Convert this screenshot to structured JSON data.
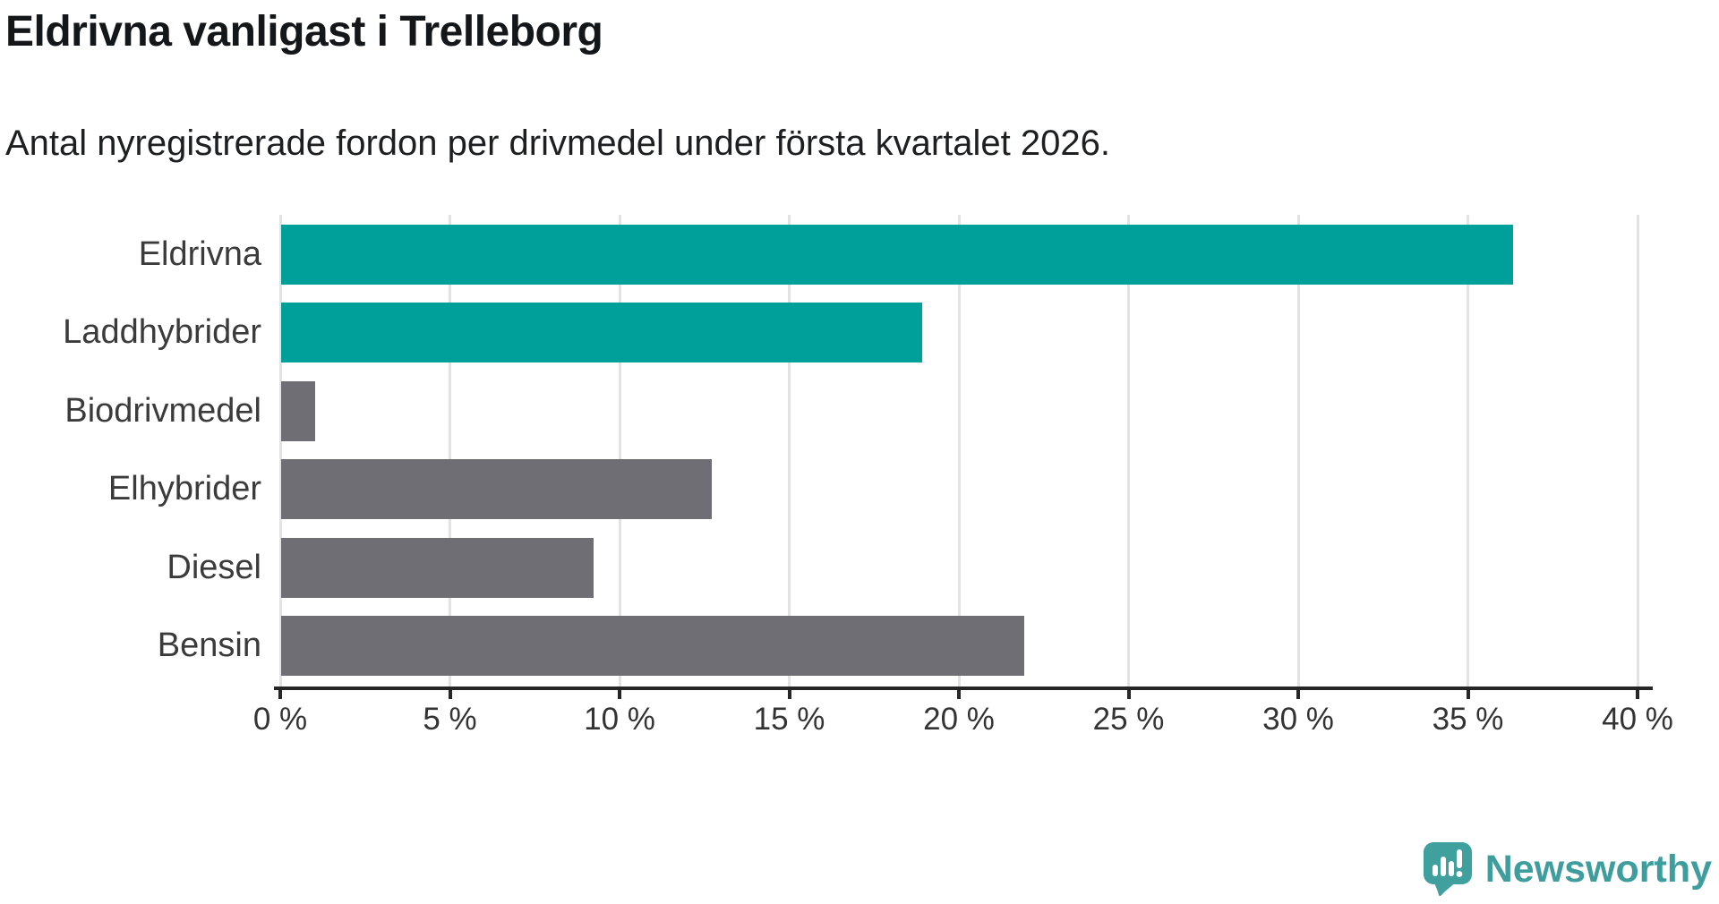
{
  "title": "Eldrivna vanligast i Trelleborg",
  "subtitle": "Antal nyregistrerade fordon per drivmedel under första kvartalet 2026.",
  "colors": {
    "highlight": "#00a09a",
    "default": "#6e6e74",
    "gridline": "#e3e3e3",
    "axis": "#262626",
    "logo_teal": "#3fa09e",
    "logo_teal_dark": "#2f8b89"
  },
  "chart_data": {
    "type": "bar",
    "orientation": "horizontal",
    "title": "Eldrivna vanligast i Trelleborg",
    "subtitle": "Antal nyregistrerade fordon per drivmedel under första kvartalet 2026.",
    "categories": [
      "Eldrivna",
      "Laddhybrider",
      "Biodrivmedel",
      "Elhybrider",
      "Diesel",
      "Bensin"
    ],
    "values": [
      36.3,
      18.9,
      1.0,
      12.7,
      9.2,
      21.9
    ],
    "bar_color_roles": [
      "highlight",
      "highlight",
      "default",
      "default",
      "default",
      "default"
    ],
    "xlabel": "",
    "ylabel": "",
    "xlim": [
      0,
      40
    ],
    "xticks": [
      0,
      5,
      10,
      15,
      20,
      25,
      30,
      35,
      40
    ],
    "xticklabels": [
      "0 %",
      "5 %",
      "10 %",
      "15 %",
      "20 %",
      "25 %",
      "30 %",
      "35 %",
      "40 %"
    ],
    "grid": true,
    "legend": false
  },
  "footer": {
    "brand": "Newsworthy"
  }
}
